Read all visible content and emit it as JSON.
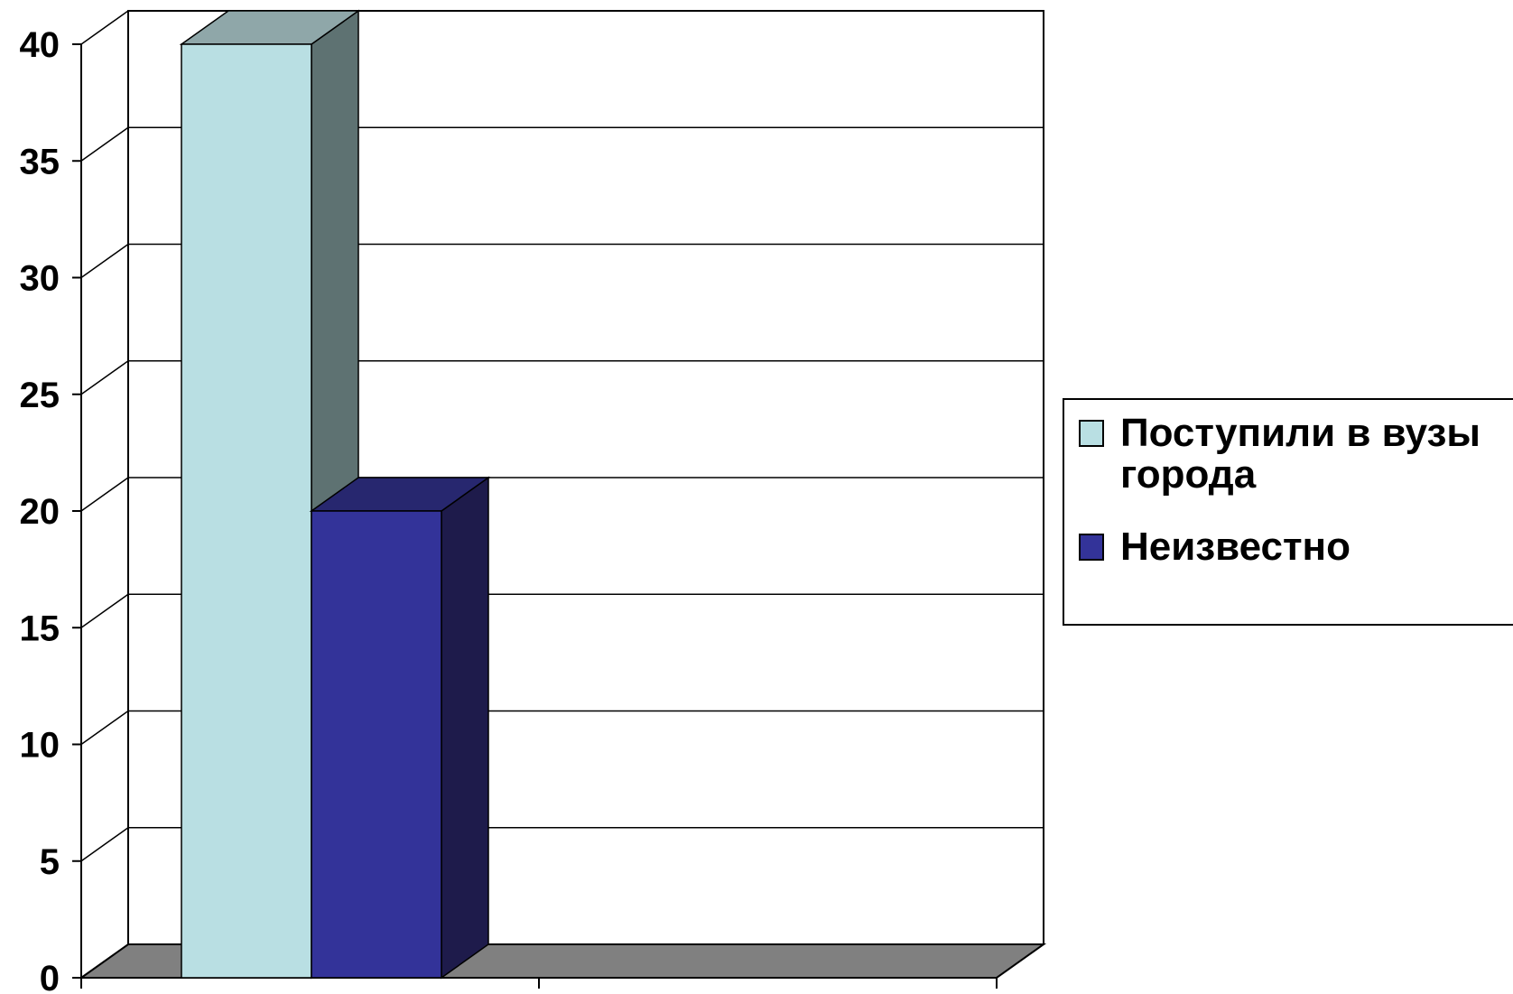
{
  "chart_data": {
    "type": "bar",
    "categories": [
      ""
    ],
    "series": [
      {
        "name": "Поступили в вузы\nгорода",
        "values": [
          40
        ],
        "color": "#B9DFE3",
        "side_color": "#5E7272",
        "top_color": "#8FA7A9"
      },
      {
        "name": "Неизвестно",
        "values": [
          20
        ],
        "color": "#333399",
        "side_color": "#1E1B4B",
        "top_color": "#27276F"
      }
    ],
    "title": "",
    "xlabel": "",
    "ylabel": "",
    "ylim": [
      0,
      40
    ],
    "yticks": [
      "0",
      "5",
      "10",
      "15",
      "20",
      "25",
      "30",
      "35",
      "40"
    ],
    "grid": true,
    "legend_position": "right",
    "floor_color": "#808080"
  }
}
